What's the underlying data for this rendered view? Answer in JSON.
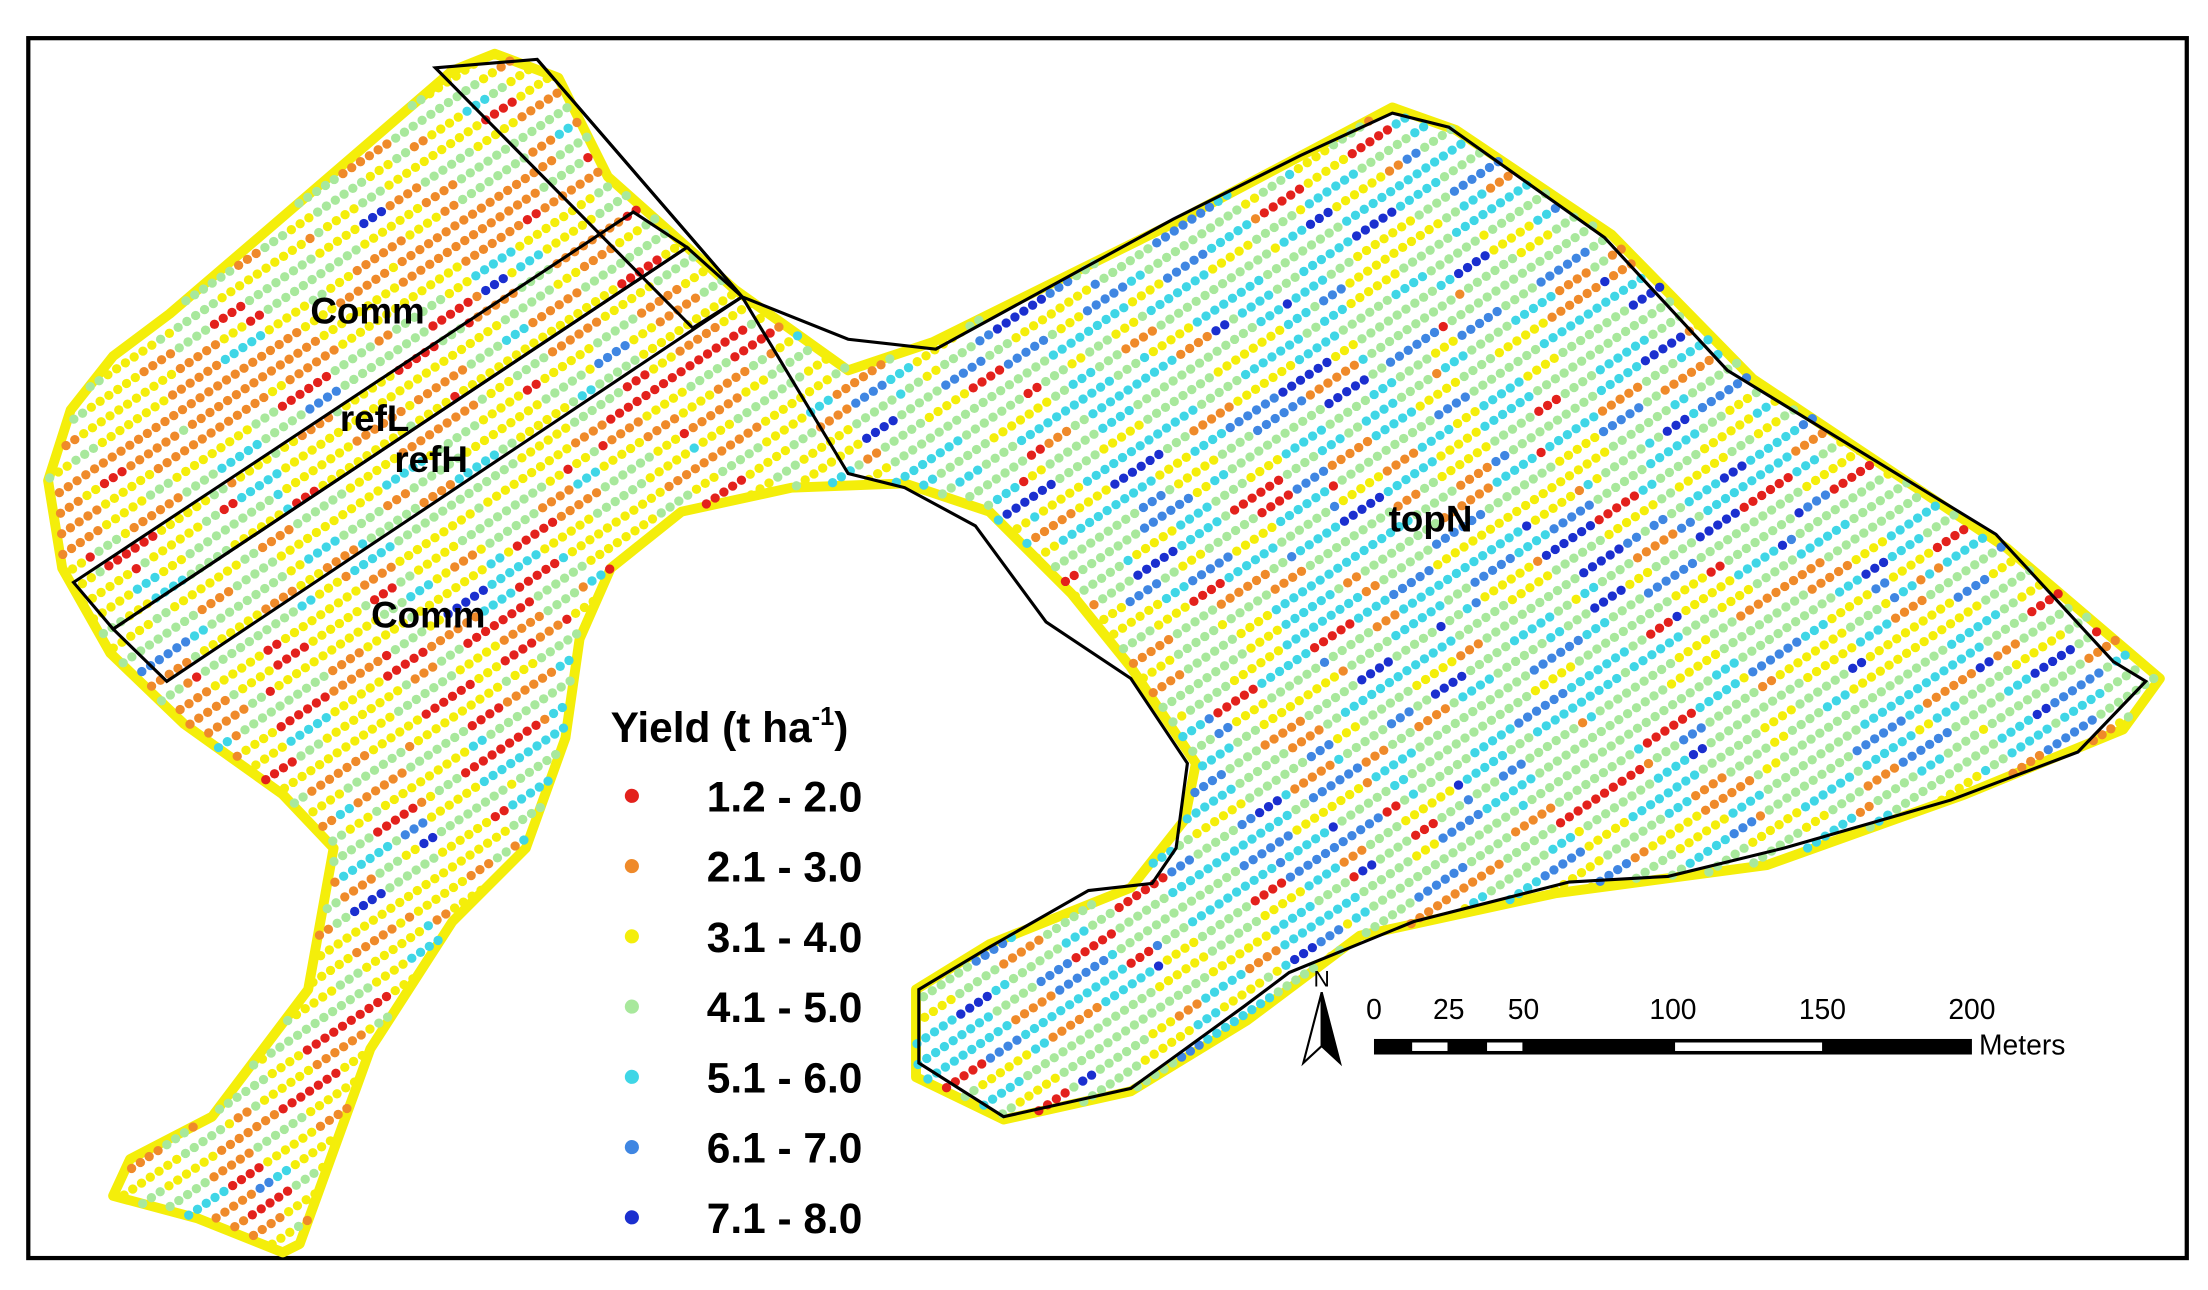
{
  "zone_labels": [
    "Comm",
    "refL",
    "refH",
    "Comm",
    "topN"
  ],
  "legend": {
    "title": "Yield (t ha",
    "title_superscript": "-1",
    "title_end": ")",
    "items": [
      {
        "label": "1.2 - 2.0",
        "color": "#e3211c"
      },
      {
        "label": "2.1 - 3.0",
        "color": "#ef8a2a"
      },
      {
        "label": "3.1 - 4.0",
        "color": "#f4ee0a"
      },
      {
        "label": "4.1 - 5.0",
        "color": "#a8e89c"
      },
      {
        "label": "5.1 - 6.0",
        "color": "#3fd6e6"
      },
      {
        "label": "6.1 - 7.0",
        "color": "#3f86e2"
      },
      {
        "label": "7.1 - 8.0",
        "color": "#1b2fcf"
      }
    ]
  },
  "scale_bar": {
    "ticks": [
      0,
      25,
      50,
      100,
      150,
      200
    ],
    "unit": "Meters"
  },
  "north_arrow": "N"
}
